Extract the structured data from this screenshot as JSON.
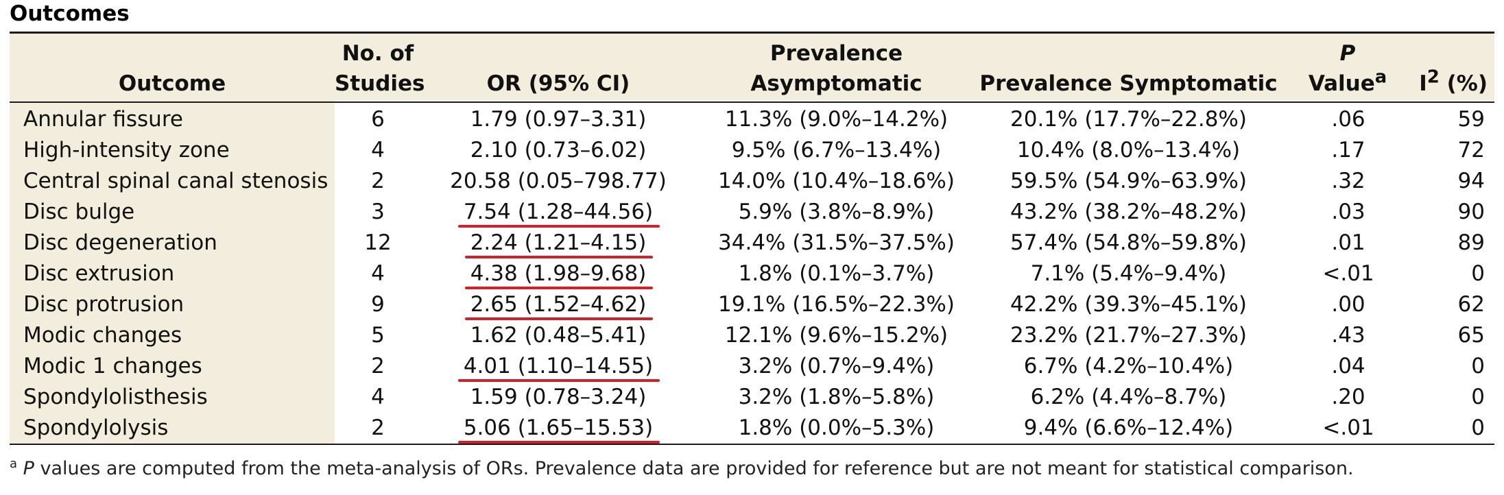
{
  "caption": "Outcomes",
  "headers": {
    "outcome": "Outcome",
    "studies_line1": "No. of",
    "studies_line2": "Studies",
    "or": "OR (95% CI)",
    "prev_asym": "Prevalence Asymptomatic",
    "prev_sym": "Prevalence Symptomatic",
    "p_line1": "P",
    "p_line2": "Value",
    "p_sup": "a",
    "i2_base": "I",
    "i2_sup": "2",
    "i2_unit": " (%)"
  },
  "rows": [
    {
      "outcome": "Annular fissure",
      "studies": "6",
      "or": "1.79 (0.97–3.31)",
      "prev_asym": "11.3% (9.0%–14.2%)",
      "prev_sym": "20.1% (17.7%–22.8%)",
      "p": ".06",
      "i2": "59",
      "underlined": false
    },
    {
      "outcome": "High-intensity zone",
      "studies": "4",
      "or": "2.10 (0.73–6.02)",
      "prev_asym": "9.5% (6.7%–13.4%)",
      "prev_sym": "10.4% (8.0%–13.4%)",
      "p": ".17",
      "i2": "72",
      "underlined": false
    },
    {
      "outcome": "Central spinal canal stenosis",
      "studies": "2",
      "or": "20.58 (0.05–798.77)",
      "prev_asym": "14.0% (10.4%–18.6%)",
      "prev_sym": "59.5% (54.9%–63.9%)",
      "p": ".32",
      "i2": "94",
      "underlined": false
    },
    {
      "outcome": "Disc bulge",
      "studies": "3",
      "or": "7.54 (1.28–44.56)",
      "prev_asym": "5.9% (3.8%–8.9%)",
      "prev_sym": "43.2% (38.2%–48.2%)",
      "p": ".03",
      "i2": "90",
      "underlined": true
    },
    {
      "outcome": "Disc degeneration",
      "studies": "12",
      "or": "2.24 (1.21–4.15)",
      "prev_asym": "34.4% (31.5%–37.5%)",
      "prev_sym": "57.4% (54.8%–59.8%)",
      "p": ".01",
      "i2": "89",
      "underlined": true
    },
    {
      "outcome": "Disc extrusion",
      "studies": "4",
      "or": "4.38 (1.98–9.68)",
      "prev_asym": "1.8% (0.1%–3.7%)",
      "prev_sym": "7.1% (5.4%–9.4%)",
      "p": "<.01",
      "i2": "0",
      "underlined": true
    },
    {
      "outcome": "Disc protrusion",
      "studies": "9",
      "or": "2.65 (1.52–4.62)",
      "prev_asym": "19.1% (16.5%–22.3%)",
      "prev_sym": "42.2% (39.3%–45.1%)",
      "p": ".00",
      "i2": "62",
      "underlined": true
    },
    {
      "outcome": "Modic changes",
      "studies": "5",
      "or": "1.62 (0.48–5.41)",
      "prev_asym": "12.1% (9.6%–15.2%)",
      "prev_sym": "23.2% (21.7%–27.3%)",
      "p": ".43",
      "i2": "65",
      "underlined": false
    },
    {
      "outcome": "Modic 1 changes",
      "studies": "2",
      "or": "4.01 (1.10–14.55)",
      "prev_asym": "3.2% (0.7%–9.4%)",
      "prev_sym": "6.7% (4.2%–10.4%)",
      "p": ".04",
      "i2": "0",
      "underlined": true
    },
    {
      "outcome": "Spondylolisthesis",
      "studies": "4",
      "or": "1.59 (0.78–3.24)",
      "prev_asym": "3.2% (1.8%–5.8%)",
      "prev_sym": "6.2% (4.4%–8.7%)",
      "p": ".20",
      "i2": "0",
      "underlined": false
    },
    {
      "outcome": "Spondylolysis",
      "studies": "2",
      "or": "5.06 (1.65–15.53)",
      "prev_asym": "1.8% (0.0%–5.3%)",
      "prev_sym": "9.4% (6.6%–12.4%)",
      "p": "<.01",
      "i2": "0",
      "underlined": true
    }
  ],
  "footnote": {
    "marker": "a",
    "italic": "P",
    "text": " values are computed from the meta-analysis of ORs. Prevalence data are provided for reference but are not meant for statistical comparison."
  },
  "colors": {
    "header_bg": "#f2eddc",
    "underline": "#d31f2a"
  }
}
